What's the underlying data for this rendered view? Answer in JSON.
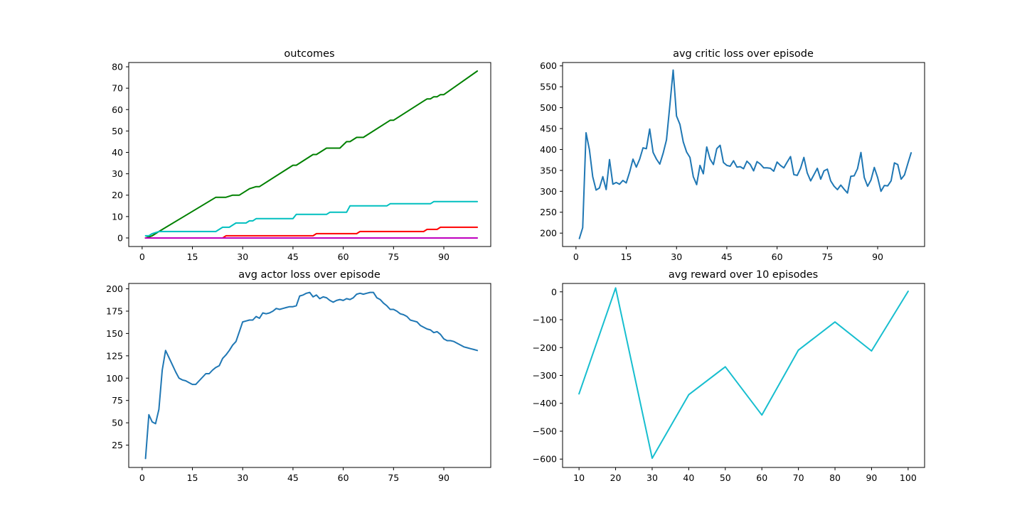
{
  "figure": {
    "background": "#ffffff"
  },
  "chart_data": [
    {
      "id": "outcomes",
      "type": "line",
      "title": "outcomes",
      "xlabel": "",
      "ylabel": "",
      "xlim": [
        -4,
        104
      ],
      "ylim": [
        -4,
        82
      ],
      "xticks": [
        0,
        15,
        30,
        45,
        60,
        75,
        90
      ],
      "yticks": [
        0,
        10,
        20,
        30,
        40,
        50,
        60,
        70,
        80
      ],
      "grid": false,
      "series": [
        {
          "color": "#008000",
          "x": [
            1,
            3,
            5,
            22,
            25,
            27,
            29,
            31,
            32,
            34,
            35,
            44,
            45,
            46,
            50,
            51,
            52,
            55,
            56,
            59,
            61,
            62,
            64,
            65,
            66,
            73,
            74,
            75,
            84,
            85,
            86,
            87,
            88,
            89,
            90,
            100
          ],
          "y": [
            0,
            1,
            3,
            19,
            19,
            20,
            20,
            22,
            23,
            24,
            24,
            33,
            34,
            34,
            38,
            39,
            39,
            42,
            42,
            42,
            45,
            45,
            47,
            47,
            47,
            54,
            55,
            55,
            64,
            65,
            65,
            66,
            66,
            67,
            67,
            78
          ]
        },
        {
          "color": "#00bfbf",
          "x": [
            1,
            2,
            3,
            5,
            22,
            24,
            26,
            28,
            29,
            31,
            32,
            33,
            34,
            45,
            46,
            55,
            56,
            61,
            62,
            73,
            74,
            86,
            87,
            100
          ],
          "y": [
            1,
            1,
            2,
            3,
            3,
            5,
            5,
            7,
            7,
            7,
            8,
            8,
            9,
            9,
            11,
            11,
            12,
            12,
            15,
            15,
            16,
            16,
            17,
            17
          ]
        },
        {
          "color": "#ff0000",
          "x": [
            1,
            24,
            25,
            51,
            52,
            64,
            65,
            84,
            85,
            88,
            89,
            100
          ],
          "y": [
            0,
            0,
            1,
            1,
            2,
            2,
            3,
            3,
            4,
            4,
            5,
            5
          ]
        },
        {
          "color": "#bf00bf",
          "x": [
            1,
            100
          ],
          "y": [
            0,
            0
          ]
        }
      ]
    },
    {
      "id": "critic",
      "type": "line",
      "title": "avg critic loss over episode",
      "xlabel": "",
      "ylabel": "",
      "xlim": [
        -4,
        104
      ],
      "ylim": [
        168,
        608
      ],
      "xticks": [
        0,
        15,
        30,
        45,
        60,
        75,
        90
      ],
      "yticks": [
        200,
        250,
        300,
        350,
        400,
        450,
        500,
        550,
        600
      ],
      "grid": false,
      "series": [
        {
          "color": "#1f77b4",
          "x": [
            1,
            2,
            3,
            4,
            5,
            6,
            7,
            8,
            9,
            10,
            11,
            12,
            13,
            14,
            15,
            16,
            17,
            18,
            19,
            20,
            21,
            22,
            23,
            24,
            25,
            26,
            27,
            28,
            29,
            30,
            31,
            32,
            33,
            34,
            35,
            36,
            37,
            38,
            39,
            40,
            41,
            42,
            43,
            44,
            45,
            46,
            47,
            48,
            49,
            50,
            51,
            52,
            53,
            54,
            55,
            56,
            57,
            58,
            59,
            60,
            61,
            62,
            63,
            64,
            65,
            66,
            67,
            68,
            69,
            70,
            71,
            72,
            73,
            74,
            75,
            76,
            77,
            78,
            79,
            80,
            81,
            82,
            83,
            84,
            85,
            86,
            87,
            88,
            89,
            90,
            91,
            92,
            93,
            94,
            95,
            96,
            97,
            98,
            99,
            100
          ],
          "y": [
            187,
            213,
            440,
            400,
            335,
            303,
            308,
            335,
            304,
            376,
            317,
            321,
            317,
            326,
            320,
            346,
            377,
            358,
            377,
            404,
            402,
            449,
            393,
            377,
            365,
            391,
            423,
            505,
            590,
            480,
            460,
            418,
            394,
            381,
            335,
            316,
            362,
            342,
            406,
            377,
            364,
            402,
            410,
            369,
            362,
            360,
            373,
            358,
            359,
            354,
            372,
            364,
            349,
            371,
            365,
            356,
            356,
            355,
            348,
            370,
            362,
            356,
            370,
            383,
            340,
            338,
            355,
            381,
            344,
            325,
            340,
            355,
            329,
            349,
            353,
            325,
            312,
            304,
            315,
            305,
            296,
            336,
            337,
            354,
            393,
            333,
            312,
            327,
            357,
            333,
            300,
            314,
            313,
            325,
            368,
            364,
            329,
            339,
            366,
            392
          ]
        }
      ]
    },
    {
      "id": "actor",
      "type": "line",
      "title": "avg actor loss over episode",
      "xlabel": "",
      "ylabel": "",
      "xlim": [
        -4,
        104
      ],
      "ylim": [
        0,
        206
      ],
      "xticks": [
        0,
        15,
        30,
        45,
        60,
        75,
        90
      ],
      "yticks": [
        25,
        50,
        75,
        100,
        125,
        150,
        175,
        200
      ],
      "grid": false,
      "series": [
        {
          "color": "#1f77b4",
          "x": [
            1,
            2,
            3,
            4,
            5,
            6,
            7,
            8,
            9,
            10,
            11,
            12,
            13,
            14,
            15,
            16,
            17,
            18,
            19,
            20,
            21,
            22,
            23,
            24,
            25,
            26,
            27,
            28,
            29,
            30,
            31,
            32,
            33,
            34,
            35,
            36,
            37,
            38,
            39,
            40,
            41,
            42,
            43,
            44,
            45,
            46,
            47,
            48,
            49,
            50,
            51,
            52,
            53,
            54,
            55,
            56,
            57,
            58,
            59,
            60,
            61,
            62,
            63,
            64,
            65,
            66,
            67,
            68,
            69,
            70,
            71,
            72,
            73,
            74,
            75,
            76,
            77,
            78,
            79,
            80,
            81,
            82,
            83,
            84,
            85,
            86,
            87,
            88,
            89,
            90,
            91,
            92,
            93,
            94,
            95,
            96,
            97,
            98,
            99,
            100
          ],
          "y": [
            10,
            59,
            51,
            49,
            65,
            109,
            131,
            123,
            115,
            107,
            100,
            98,
            97,
            95,
            93,
            93,
            97,
            101,
            105,
            105,
            109,
            112,
            114,
            122,
            126,
            131,
            137,
            141,
            152,
            163,
            164,
            165,
            165,
            169,
            167,
            173,
            172,
            173,
            175,
            178,
            177,
            178,
            179,
            180,
            180,
            181,
            192,
            193,
            195,
            196,
            191,
            193,
            189,
            191,
            190,
            187,
            185,
            187,
            188,
            187,
            189,
            188,
            190,
            194,
            195,
            194,
            195,
            196,
            196,
            190,
            188,
            184,
            181,
            177,
            177,
            175,
            172,
            171,
            169,
            165,
            164,
            163,
            159,
            157,
            155,
            154,
            151,
            152,
            149,
            144,
            142,
            142,
            141,
            139,
            137,
            135,
            134,
            133,
            132,
            131
          ]
        }
      ]
    },
    {
      "id": "reward",
      "type": "line",
      "title": "avg reward over 10 episodes",
      "xlabel": "",
      "ylabel": "",
      "xlim": [
        5.5,
        104.5
      ],
      "ylim": [
        -630,
        30
      ],
      "xticks": [
        10,
        20,
        30,
        40,
        50,
        60,
        70,
        80,
        90,
        100
      ],
      "yticks": [
        0,
        -100,
        -200,
        -300,
        -400,
        -500,
        -600
      ],
      "ytick_labels": [
        "0",
        "−100",
        "−200",
        "−300",
        "−400",
        "−500",
        "−600"
      ],
      "grid": false,
      "series": [
        {
          "color": "#17becf",
          "x": [
            10,
            20,
            30,
            40,
            50,
            60,
            70,
            80,
            90,
            100
          ],
          "y": [
            -366,
            14,
            -597,
            -369,
            -269,
            -442,
            -209,
            -108,
            -212,
            2
          ]
        }
      ]
    }
  ]
}
